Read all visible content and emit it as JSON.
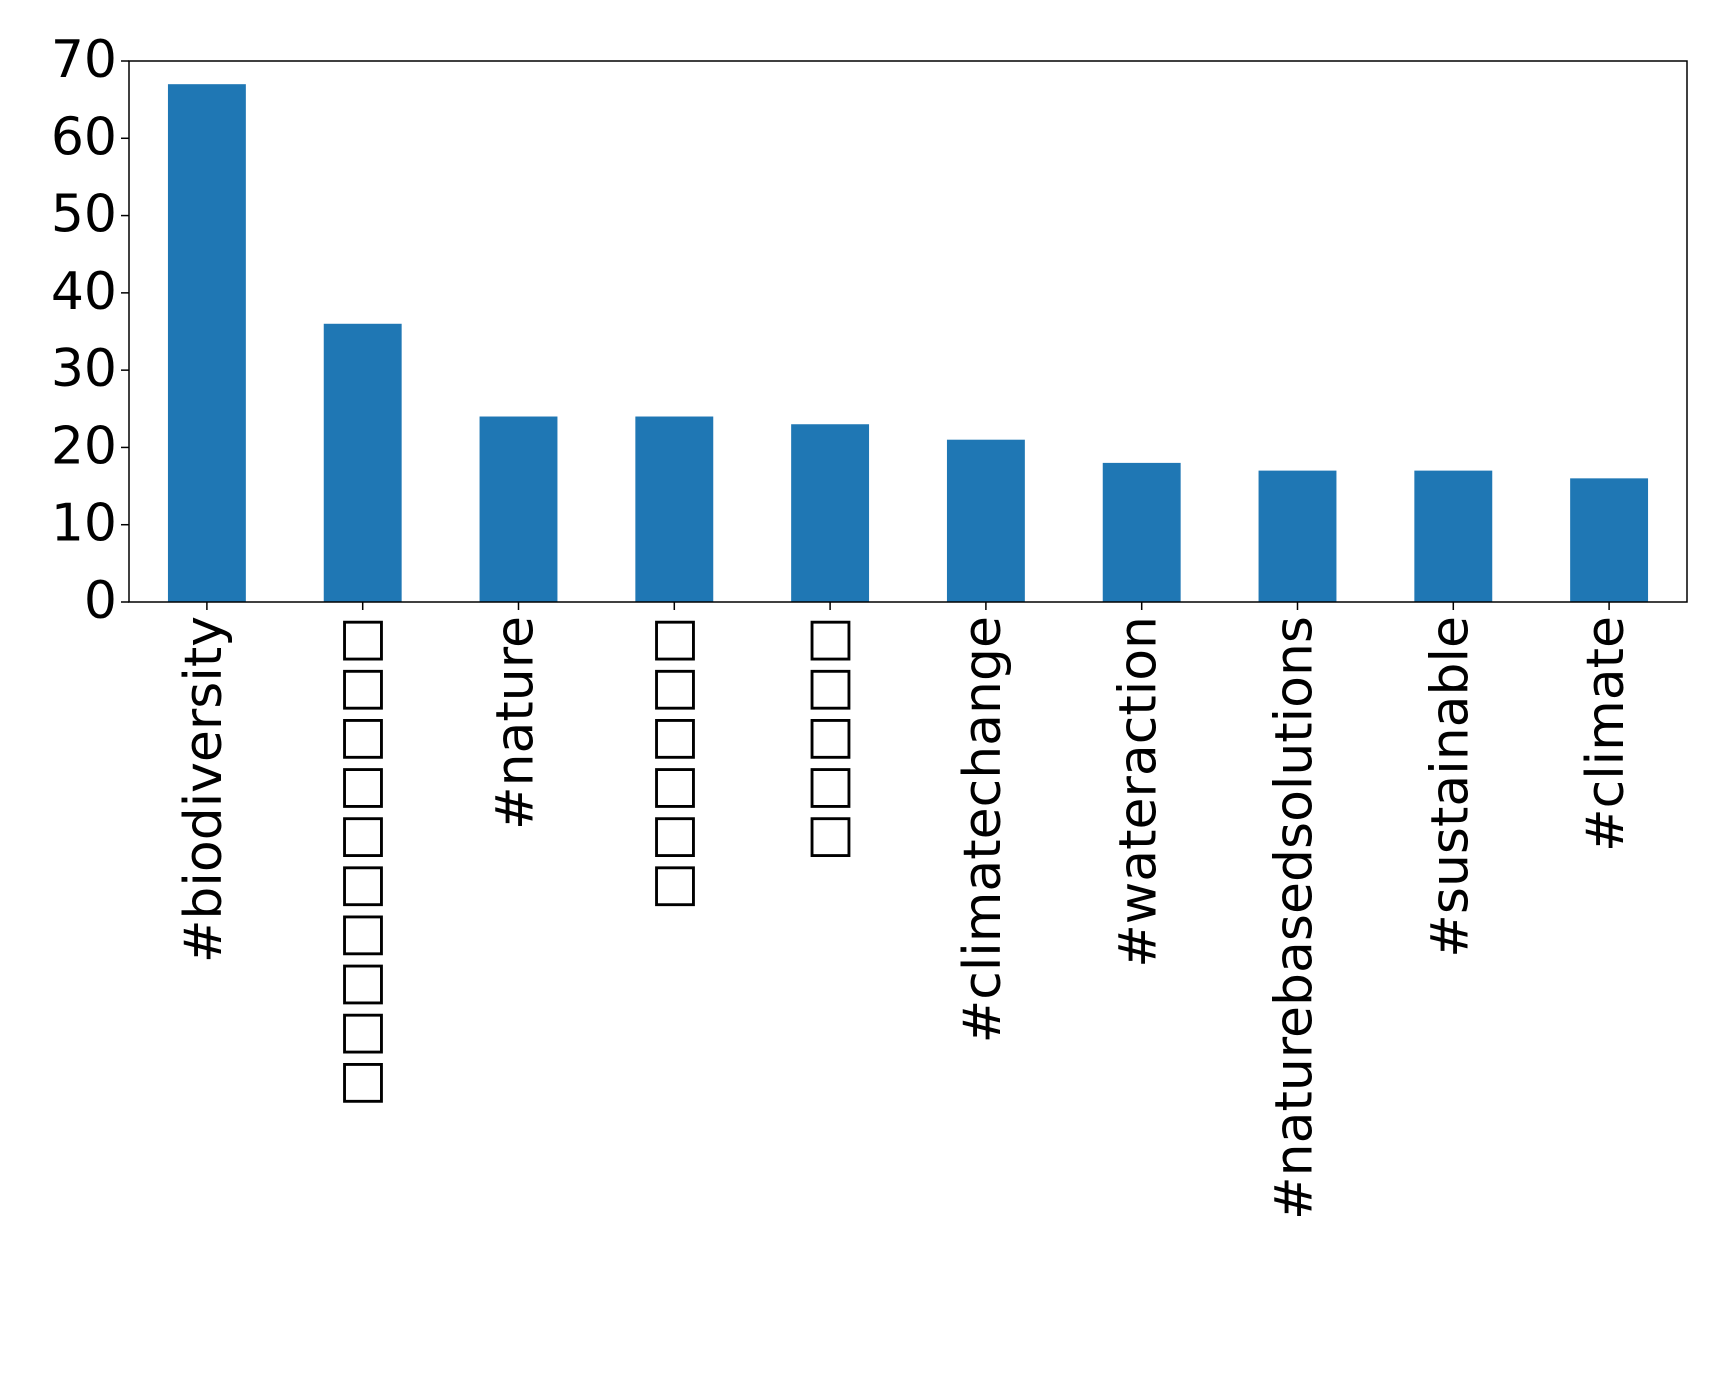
{
  "chart_data": {
    "type": "bar",
    "categories": [
      "#biodiversity",
      "□□□□□□□□□□",
      "#nature",
      "□□□□□□",
      "□□□□□",
      "#climatechange",
      "#wateraction",
      "#naturebasedsolutions",
      "#sustainable",
      "#climate"
    ],
    "values": [
      67,
      36,
      24,
      24,
      23,
      21,
      18,
      17,
      17,
      16
    ],
    "color": "#1f77b4",
    "ylim": [
      0,
      70
    ],
    "yticks": [
      0,
      10,
      20,
      30,
      40,
      50,
      60,
      70
    ],
    "grid": false
  }
}
